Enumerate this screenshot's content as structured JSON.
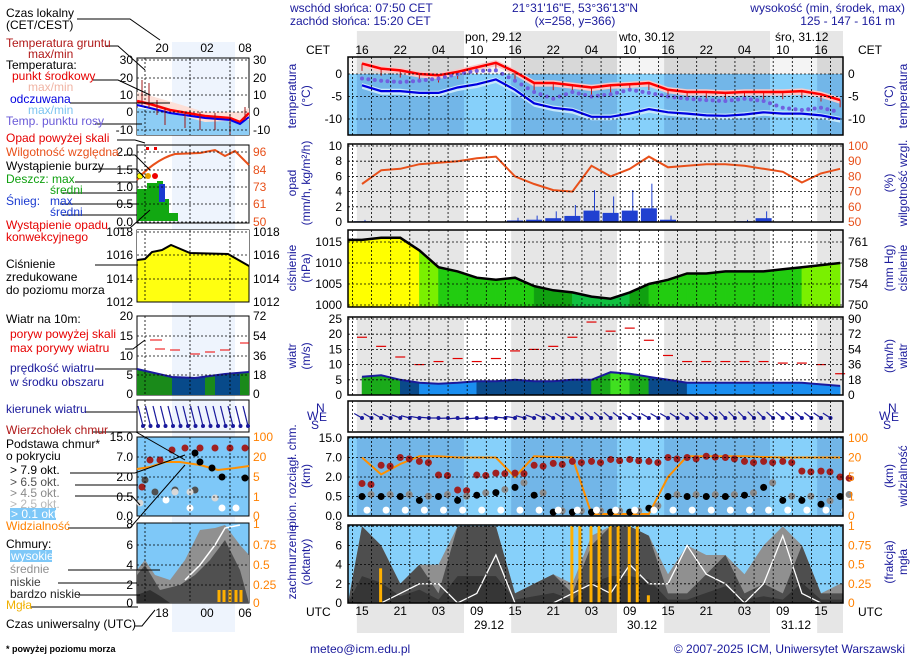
{
  "header": {
    "sunrise": "wschód słońca: 07:50 CET",
    "sunset": "zachód słońca: 15:20 CET",
    "coords": "21°31'16\"E, 53°36'13\"N",
    "grid": "(x=258,  y=366)",
    "elevation_label": "wysokość (min, środek, max)",
    "elevation": "125 - 147 - 161 m"
  },
  "time_axis": {
    "cet_label": "CET",
    "utc_label": "UTC",
    "cet_hours": [
      "16",
      "22",
      "04",
      "10",
      "16",
      "22",
      "04",
      "10",
      "16",
      "22",
      "04",
      "10",
      "16"
    ],
    "cet_days": [
      "pon, 29.12",
      "wto, 30.12",
      "śro, 31.12"
    ],
    "utc_hours": [
      "15",
      "21",
      "03",
      "09",
      "15",
      "21",
      "03",
      "09",
      "15",
      "21",
      "03",
      "09",
      "15"
    ],
    "utc_dates": [
      "29.12",
      "30.12",
      "31.12"
    ]
  },
  "legend": {
    "local_time": [
      "Czas lokalny",
      "(CET/CEST)"
    ],
    "ground_temp": [
      "Temperatura gruntu",
      "max/min"
    ],
    "temperature": "Temperatura:",
    "mid_point": "punkt środkowy",
    "temp_maxmin": "max/min",
    "feels_like": "odczuwana",
    "feels_maxmin": "max/min",
    "dew_point": "Temp. punktu rosy",
    "precip_over_scale": "Opad powyżej skali",
    "humidity": "Wilgotność względna",
    "storm": "Wystąpienie burzy",
    "rain_max": "Deszcz: max",
    "rain_mean": "średni",
    "snow": "Śnieg:",
    "snow_max": "max",
    "snow_mean": "średni",
    "convective": [
      "Wystąpienie opadu",
      "konwekcyjnego"
    ],
    "pressure": [
      "Ciśnienie",
      "zredukowane",
      "do poziomu morza"
    ],
    "wind_10m": "Wiatr na 10m:",
    "gust_over_scale": "poryw powyżej skali",
    "max_gusts": "max porywy wiatru",
    "wind_speed": [
      "prędkość wiatru",
      "w środku obszaru"
    ],
    "wind_dir": "kierunek wiatru",
    "cloud_top": "Wierzchołek chmur",
    "cloud_base": [
      "Podstawa chmur*",
      "o pokryciu"
    ],
    "okt": [
      "> 7.9 okt.",
      "> 6.5 okt.",
      "> 4.5 okt.",
      "> 2.5 okt.",
      "> 0.1 okt."
    ],
    "visibility": "Widzialność",
    "clouds": "Chmury:",
    "cloud_layers": [
      "wysokie",
      "średnie",
      "niskie",
      "bardzo niskie"
    ],
    "fog": "Mgła",
    "utc_time": "Czas uniwersalny (UTC)",
    "footnote": "* powyżej poziomu morza",
    "mini_top_hours": [
      "20",
      "02",
      "08"
    ],
    "mini_bottom_hours": [
      "18",
      "00",
      "06"
    ],
    "mini_ticks": {
      "temp": [
        "30",
        "20",
        "10",
        "0",
        "-10"
      ],
      "precip_left": [
        "2.0",
        "1.5",
        "1.0",
        "0.5",
        "0.0"
      ],
      "precip_right": [
        "96",
        "84",
        "73",
        "61",
        "50"
      ],
      "pressure": [
        "1018",
        "1016",
        "1014",
        "1012"
      ],
      "wind_left": [
        "20",
        "15",
        "10",
        "5",
        "0"
      ],
      "wind_right": [
        "72",
        "54",
        "36",
        "18",
        "0"
      ],
      "cloud_base_left": [
        "15.0",
        "7.0",
        "2.0",
        "0.5",
        "0.0"
      ],
      "cloud_base_right": [
        "100",
        "20",
        "5",
        "1",
        "0"
      ],
      "cloud_left": [
        "8",
        "6",
        "4",
        "2",
        "0"
      ],
      "cloud_right": [
        "1",
        "0.75",
        "0.5",
        "0.25",
        "0"
      ]
    }
  },
  "axes": {
    "temp": {
      "left": [
        "temperatura",
        "(°C)"
      ],
      "right": [
        "(°C)",
        "temperatura"
      ],
      "ticks": [
        "0",
        "-5",
        "-10"
      ]
    },
    "precip": {
      "left": [
        "opad",
        "(mm/h, kg/m²/h)"
      ],
      "right": [
        "(%)",
        "wilgotność wzgl."
      ],
      "ticks_left": [
        "0",
        "2",
        "4",
        "6",
        "8",
        "10"
      ],
      "ticks_right": [
        "50",
        "60",
        "70",
        "80",
        "90",
        "100"
      ]
    },
    "pressure": {
      "left": [
        "ciśnienie",
        "(hPa)"
      ],
      "right": [
        "(mm Hg)",
        "ciśnienie"
      ],
      "ticks_left": [
        "1000",
        "1005",
        "1010",
        "1015"
      ],
      "ticks_right": [
        "750",
        "754",
        "758",
        "761"
      ]
    },
    "wind": {
      "left": [
        "wiatr",
        "(m/s)"
      ],
      "right": [
        "(km/h)",
        "wiatr"
      ],
      "ticks_left": [
        "0",
        "5",
        "10",
        "15",
        "20",
        "25"
      ],
      "ticks_right": [
        "0",
        "18",
        "36",
        "54",
        "72",
        "90"
      ]
    },
    "wind_dir": {
      "compass": [
        "N",
        "W",
        "E",
        "S"
      ]
    },
    "cloud_base": {
      "left": [
        "pion. rozciągł. chm.",
        "(km)"
      ],
      "right": [
        "(km)",
        "widzialność"
      ],
      "ticks_left": [
        "0.0",
        "0.5",
        "2.0",
        "7.0",
        "15.0"
      ],
      "ticks_right": [
        "0",
        "1",
        "5",
        "20",
        "100"
      ]
    },
    "cloud_cover": {
      "left": [
        "zachmurzenie",
        "(oktanty)"
      ],
      "right": [
        "(frakcja)",
        "mgła"
      ],
      "ticks_left": [
        "0",
        "2",
        "4",
        "6",
        "8"
      ],
      "ticks_right": [
        "0",
        "0.25",
        "0.5",
        "0.75",
        "1"
      ]
    }
  },
  "footer": {
    "email": "meteo@icm.edu.pl",
    "copyright": "© 2007-2025 ICM, Uniwersytet Warszawski"
  },
  "colors": {
    "temperature": "#ff0000",
    "feels_like": "#0000e0",
    "dew_point": "#7060e0",
    "humidity": "#e8501a",
    "precip": "#2040d0",
    "visibility": "#ff9000",
    "fog": "#ffb000",
    "label": "#1a1a9c"
  },
  "chart_data": [
    {
      "type": "line",
      "title": "temperatura",
      "x": [
        "28.12 16:00",
        "28.12 19:00",
        "28.12 22:00",
        "29.12 01:00",
        "29.12 04:00",
        "29.12 07:00",
        "29.12 10:00",
        "29.12 13:00",
        "29.12 16:00",
        "29.12 19:00",
        "29.12 22:00",
        "30.12 01:00",
        "30.12 04:00",
        "30.12 07:00",
        "30.12 10:00",
        "30.12 13:00",
        "30.12 16:00",
        "30.12 19:00",
        "30.12 22:00",
        "31.12 01:00",
        "31.12 04:00",
        "31.12 07:00",
        "31.12 10:00",
        "31.12 13:00",
        "31.12 16:00",
        "31.12 19:00"
      ],
      "ylabel": "(°C)",
      "ylim": [
        -13,
        4
      ],
      "series": [
        {
          "name": "punkt środkowy",
          "values": [
            2.3,
            1.2,
            0.8,
            0,
            -0.3,
            0.5,
            1.5,
            2.5,
            0.5,
            -2,
            -2,
            -2.5,
            -3,
            -2.5,
            -2.3,
            -2,
            -3.5,
            -4,
            -4,
            -4.2,
            -4,
            -4,
            -4,
            -3.8,
            -4.5,
            -5.8
          ]
        },
        {
          "name": "odczuwana",
          "values": [
            -2.5,
            -3.8,
            -3.8,
            -4.2,
            -4.2,
            -3,
            -2.3,
            -1.2,
            -3.5,
            -6.5,
            -7.5,
            -8,
            -9.5,
            -9.5,
            -8.8,
            -7.8,
            -8.5,
            -8.8,
            -9.2,
            -9.3,
            -9,
            -8.5,
            -8.8,
            -8.8,
            -9.2,
            -10
          ]
        },
        {
          "name": "Temp. punktu rosy",
          "values": [
            -1,
            -1.5,
            -1.8,
            -1.5,
            -1,
            0,
            0.7,
            0.8,
            -1.5,
            -4,
            -5.5,
            -4,
            -5,
            -4.5,
            -3.5,
            -4.2,
            -5,
            -5.5,
            -5.8,
            -6,
            -5.5,
            -6,
            -7.5,
            -8,
            -7.5,
            -8.5
          ]
        }
      ]
    },
    {
      "type": "bar",
      "title": "opad / wilgotność wzgl.",
      "ylim": [
        0,
        10
      ],
      "y2lim": [
        50,
        100
      ],
      "series": [
        {
          "name": "opad",
          "values": [
            0.1,
            0,
            0,
            0,
            0,
            0,
            0,
            0,
            0.2,
            0.3,
            0.5,
            0.8,
            1.5,
            1.2,
            1.5,
            1.8,
            0.3,
            0,
            0,
            0,
            0.1,
            0.5,
            0,
            0,
            0,
            0
          ]
        },
        {
          "name": "wilgotność względna",
          "values": [
            75,
            84,
            85,
            88,
            89,
            90,
            92,
            93,
            80,
            75,
            71,
            70,
            87,
            80,
            85,
            93,
            86,
            87,
            88,
            88,
            87,
            85,
            83,
            76,
            82,
            85
          ]
        }
      ]
    },
    {
      "type": "area",
      "title": "ciśnienie",
      "ylim": [
        1000,
        1017
      ],
      "series": [
        {
          "name": "ciśnienie",
          "values": [
            1015.5,
            1016,
            1016,
            1013,
            1009,
            1008,
            1006.5,
            1006,
            1006.5,
            1004.5,
            1003.5,
            1003,
            1002,
            1001.5,
            1003,
            1005,
            1006,
            1007.5,
            1007.5,
            1008,
            1008,
            1008,
            1008.5,
            1009,
            1009.5,
            1010
          ]
        }
      ]
    },
    {
      "type": "area",
      "title": "wiatr",
      "ylim": [
        0,
        25
      ],
      "series": [
        {
          "name": "prędkość wiatru",
          "values": [
            6,
            6.5,
            5,
            4,
            3.7,
            4,
            4.5,
            4.5,
            5,
            4.5,
            4.5,
            5,
            5,
            7.5,
            7,
            6,
            5,
            4,
            4,
            4,
            4,
            4,
            4,
            4,
            3.5,
            3
          ]
        },
        {
          "name": "max porywy wiatru",
          "values": [
            19,
            16,
            12.5,
            10,
            11,
            12,
            11,
            12,
            14.5,
            15,
            16,
            19,
            24,
            21,
            22,
            18,
            13,
            11,
            11,
            11,
            11,
            11,
            10.5,
            10.5,
            10,
            7
          ]
        },
        {
          "name": "kierunek wiatru",
          "values": [
            300,
            300,
            290,
            280,
            270,
            265,
            265,
            270,
            280,
            290,
            300,
            305,
            310,
            310,
            305,
            300,
            300,
            305,
            310,
            315,
            315,
            315,
            310,
            310,
            305,
            300
          ]
        }
      ]
    },
    {
      "type": "scatter",
      "title": "pion. rozciągł. chm. / widzialność",
      "yticks": [
        0,
        0.5,
        2,
        7,
        15
      ],
      "y2ticks": [
        0,
        1,
        5,
        20,
        100
      ],
      "series": [
        {
          "name": "Wierzchołek chmur",
          "values": [
            1.5,
            5,
            7,
            6,
            2.5,
            1,
            2.5,
            3,
            3,
            5,
            5.5,
            6,
            6,
            6.5,
            6.5,
            6,
            7,
            7,
            7.5,
            7,
            6,
            6,
            6,
            3.5,
            3.5,
            2
          ]
        },
        {
          "name": "Podstawa chmur",
          "values": [
            0.5,
            0.5,
            0.5,
            0.4,
            0.5,
            0.4,
            0.6,
            0.8,
            1.2,
            0.6,
            0.1,
            0.1,
            0.1,
            0.1,
            0.1,
            0.2,
            0.5,
            0.5,
            0.5,
            0.5,
            0.6,
            1.2,
            0.4,
            0.4,
            0.3,
            0.5
          ]
        },
        {
          "name": "Widzialność",
          "values": [
            20,
            7,
            15,
            25,
            25,
            20,
            20,
            20,
            5,
            25,
            22,
            20,
            0.1,
            0.1,
            0.1,
            0.1,
            5,
            25,
            25,
            25,
            25,
            22,
            20,
            20,
            20,
            20
          ]
        }
      ]
    },
    {
      "type": "area",
      "title": "zachmurzenie / mgła",
      "ylim": [
        0,
        8
      ],
      "series": [
        {
          "name": "średnie",
          "values": [
            0,
            1,
            2,
            3,
            4,
            1,
            0,
            0,
            1,
            2,
            2,
            2,
            7,
            8,
            8,
            7,
            3,
            6,
            5,
            2,
            3,
            6,
            8,
            4,
            1,
            2
          ]
        },
        {
          "name": "niskie",
          "values": [
            8,
            6,
            2,
            4,
            1,
            8,
            8,
            8,
            1,
            2,
            3,
            1,
            6,
            8,
            8,
            7,
            1,
            1,
            3,
            5,
            1,
            2,
            1,
            6,
            1,
            1
          ]
        },
        {
          "name": "wysokie",
          "values": [
            0,
            0,
            1,
            2,
            2,
            0,
            1,
            5,
            0,
            0,
            0,
            1,
            2,
            1,
            4,
            2,
            2,
            6,
            3,
            2,
            0,
            2,
            7,
            1,
            0,
            0
          ]
        },
        {
          "name": "mgła",
          "values": [
            0,
            0.45,
            0,
            0,
            0,
            0,
            0,
            0,
            0,
            0,
            0,
            1,
            1,
            1,
            1,
            0.1,
            0,
            0,
            0,
            0,
            0,
            0,
            0,
            0,
            0,
            0
          ]
        }
      ]
    }
  ]
}
